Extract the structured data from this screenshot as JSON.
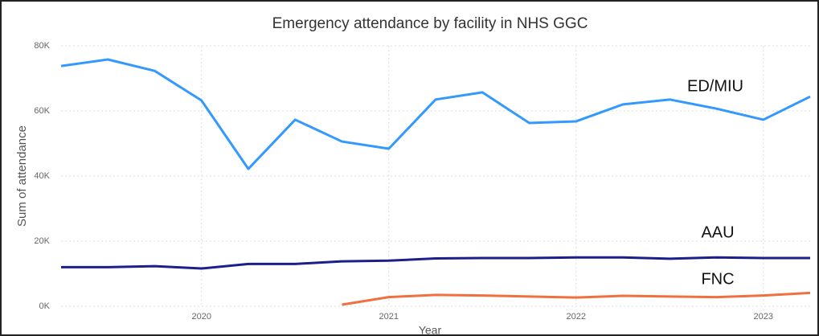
{
  "chart_data": {
    "type": "line",
    "title": "Emergency attendance by facility in NHS GGC",
    "x_label": "Year",
    "y_label": "Sum of attendance",
    "x": [
      2019.25,
      2019.5,
      2019.75,
      2020,
      2020.25,
      2020.5,
      2020.75,
      2021,
      2021.25,
      2021.5,
      2021.75,
      2022,
      2022.25,
      2022.5,
      2022.75,
      2023,
      2023.25
    ],
    "xlim": [
      2019.25,
      2023.25
    ],
    "xticks": [
      2020,
      2021,
      2022,
      2023
    ],
    "ylim": [
      0,
      80000
    ],
    "yticks": [
      {
        "value": 0,
        "label": "0K"
      },
      {
        "value": 20000,
        "label": "20K"
      },
      {
        "value": 40000,
        "label": "40K"
      },
      {
        "value": 60000,
        "label": "60K"
      },
      {
        "value": 80000,
        "label": "80K"
      }
    ],
    "grid": true,
    "series": [
      {
        "name": "ED/MIU",
        "color": "#3399ff",
        "values": [
          73800,
          75800,
          72300,
          63200,
          42200,
          57300,
          50600,
          48400,
          63500,
          65700,
          56300,
          56800,
          62000,
          63500,
          60700,
          57300,
          64400
        ]
      },
      {
        "name": "AAU",
        "color": "#1c1f8a",
        "values": [
          12000,
          12000,
          12300,
          11600,
          13000,
          13000,
          13800,
          14000,
          14700,
          14800,
          14800,
          15000,
          15000,
          14600,
          15000,
          14800,
          14800
        ]
      },
      {
        "name": "FNC",
        "color": "#f07040",
        "values": [
          null,
          null,
          null,
          null,
          null,
          null,
          500,
          2800,
          3500,
          3300,
          3000,
          2700,
          3200,
          3000,
          2800,
          3300,
          4100
        ]
      }
    ]
  }
}
